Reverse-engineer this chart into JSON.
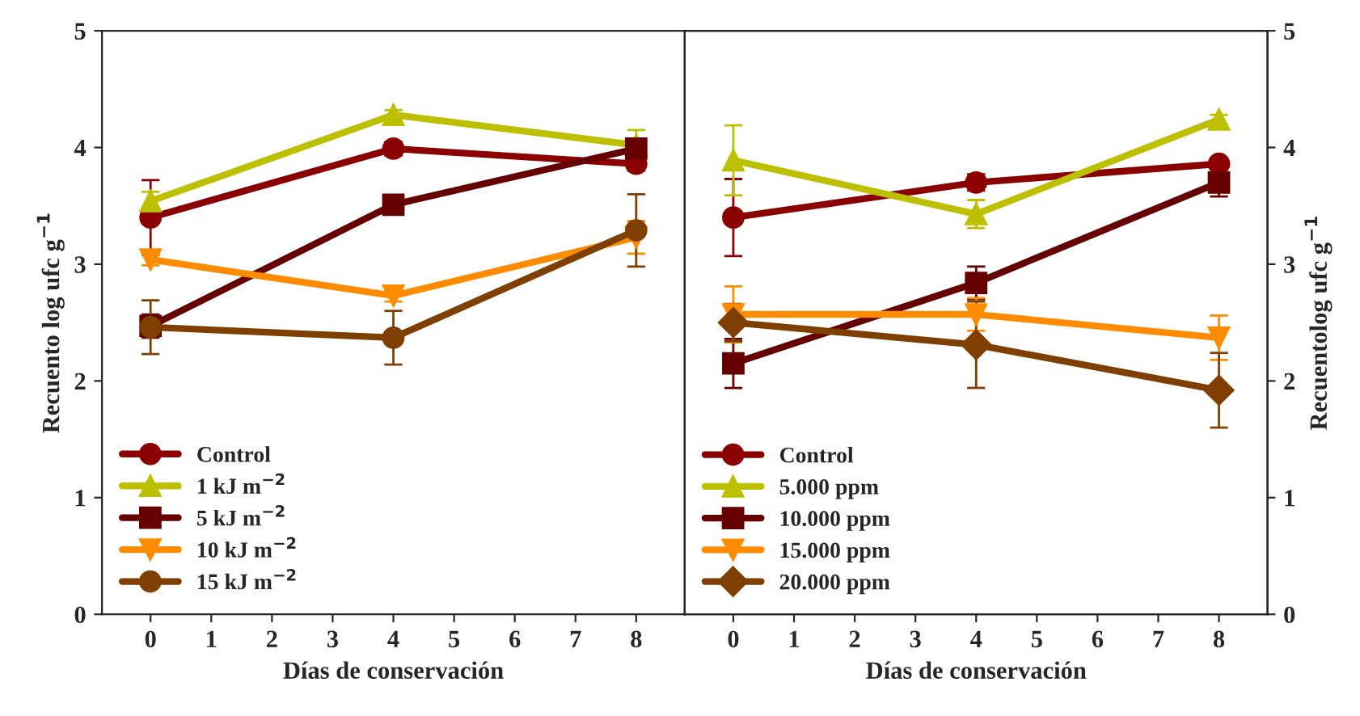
{
  "chart_data": [
    {
      "type": "line",
      "xlabel": "Días de conservación",
      "ylabel": "Recuento log ufc g$^{−1}$",
      "xlim": [
        -0.8,
        8.8
      ],
      "xticks": [
        0,
        1,
        2,
        3,
        4,
        5,
        6,
        7,
        8
      ],
      "ylim": [
        0,
        5
      ],
      "yticks": [
        0,
        1,
        2,
        3,
        4,
        5
      ],
      "grid": false,
      "legend": "bottom left",
      "line_style": "solid",
      "series": [
        {
          "name": "Control",
          "color": "#8b0000",
          "marker": "circle",
          "x": [
            0,
            4,
            8
          ],
          "values": [
            3.4,
            3.99,
            3.86
          ],
          "errors": [
            0.32,
            0.06,
            0.06
          ]
        },
        {
          "name": "1 kJ m$^{−2}$",
          "color": "#bdc000",
          "marker": "triangle",
          "x": [
            0,
            4,
            8
          ],
          "values": [
            3.54,
            4.28,
            4.02
          ],
          "errors": [
            0.08,
            0.04,
            0.13
          ]
        },
        {
          "name": "5 kJ m$^{−2}$",
          "color": "#660000",
          "marker": "square",
          "x": [
            0,
            4,
            8
          ],
          "values": [
            2.47,
            3.51,
            3.99
          ],
          "errors": [
            0.1,
            0.05,
            0.05
          ]
        },
        {
          "name": "10 kJ m$^{−2}$",
          "color": "#ff8c00",
          "marker": "triangle_down",
          "x": [
            0,
            4,
            8
          ],
          "values": [
            3.04,
            2.73,
            3.23
          ],
          "errors": [
            0.05,
            0.05,
            0.14
          ]
        },
        {
          "name": "15 kJ m$^{−2}$",
          "color": "#7f3f00",
          "marker": "circle",
          "x": [
            0,
            4,
            8
          ],
          "values": [
            2.46,
            2.37,
            3.29
          ],
          "errors": [
            0.23,
            0.23,
            0.31
          ]
        }
      ]
    },
    {
      "type": "line",
      "xlabel": "Días de conservación",
      "y2label": "Recuentolog ufc g$^{−1}$",
      "xlim": [
        -0.8,
        8.8
      ],
      "xticks": [
        0,
        1,
        2,
        3,
        4,
        5,
        6,
        7,
        8
      ],
      "y2lim": [
        0,
        5
      ],
      "y2ticks": [
        0,
        1,
        2,
        3,
        4,
        5
      ],
      "grid": false,
      "legend": "bottom left",
      "line_style": "solid",
      "series": [
        {
          "name": "Control",
          "color": "#8b0000",
          "marker": "circle",
          "axis": "y2",
          "x": [
            0,
            4,
            8
          ],
          "values": [
            3.4,
            3.7,
            3.86
          ],
          "errors": [
            0.33,
            0.07,
            0.05
          ]
        },
        {
          "name": "5.000 ppm",
          "color": "#bdc000",
          "marker": "triangle",
          "axis": "y2",
          "x": [
            0,
            4,
            8
          ],
          "values": [
            3.89,
            3.43,
            4.24
          ],
          "errors": [
            0.3,
            0.12,
            0.04
          ]
        },
        {
          "name": "10.000 ppm",
          "color": "#660000",
          "marker": "square",
          "axis": "y2",
          "x": [
            0,
            4,
            8
          ],
          "values": [
            2.15,
            2.84,
            3.7
          ],
          "errors": [
            0.21,
            0.14,
            0.12
          ]
        },
        {
          "name": "15.000 ppm",
          "color": "#ff8c00",
          "marker": "triangle_down",
          "axis": "y2",
          "x": [
            0,
            4,
            8
          ],
          "values": [
            2.57,
            2.57,
            2.37
          ],
          "errors": [
            0.24,
            0.14,
            0.19
          ]
        },
        {
          "name": "20.000 ppm",
          "color": "#7f3f00",
          "marker": "diamond",
          "axis": "y2",
          "x": [
            0,
            4,
            8
          ],
          "values": [
            2.5,
            2.31,
            1.92
          ],
          "errors": [
            0.16,
            0.37,
            0.32
          ]
        }
      ]
    }
  ]
}
